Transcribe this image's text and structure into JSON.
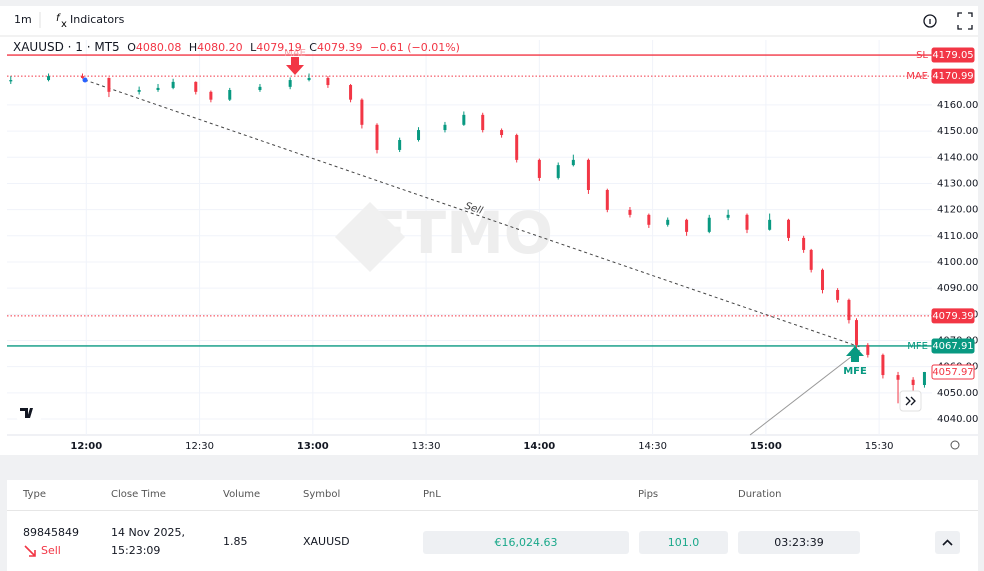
{
  "toolbar": {
    "interval": "1m",
    "indicators": "Indicators"
  },
  "legend": {
    "symbol": "XAUUSD · 1 · MT5",
    "ohlc": [
      {
        "key": "O",
        "value": "4080.08"
      },
      {
        "key": "H",
        "value": "4080.20"
      },
      {
        "key": "L",
        "value": "4079.19"
      },
      {
        "key": "C",
        "value": "4079.39"
      }
    ],
    "change": "−0.61 (−0.01%)"
  },
  "chart_data": {
    "type": "candlestick",
    "watermark": "FTMO",
    "candles": [
      [
        700,
        4169,
        4171,
        4168,
        4169.5
      ],
      [
        710,
        4169.5,
        4172,
        4169,
        4171
      ],
      [
        719,
        4171,
        4172,
        4170,
        4170.3
      ],
      [
        726,
        4170.3,
        4170.5,
        4163,
        4165
      ],
      [
        734,
        4165,
        4167,
        4164,
        4165.7
      ],
      [
        739,
        4165.7,
        4168,
        4165,
        4166.5
      ],
      [
        743,
        4166.5,
        4170,
        4166,
        4168.8
      ],
      [
        749,
        4168.8,
        4169,
        4164,
        4165
      ],
      [
        753,
        4165,
        4165.5,
        4161,
        4162
      ],
      [
        758,
        4162,
        4166.5,
        4161.5,
        4165.7
      ],
      [
        766,
        4165.7,
        4168,
        4165,
        4166.9
      ],
      [
        774,
        4166.9,
        4170.5,
        4166,
        4169.5
      ],
      [
        779,
        4169.5,
        4172,
        4169,
        4170.3
      ],
      [
        784,
        4170.3,
        4171,
        4166.5,
        4167.6
      ],
      [
        790,
        4167.6,
        4168,
        4161,
        4162
      ],
      [
        793,
        4162,
        4162.5,
        4151,
        4152.4
      ],
      [
        797,
        4152.4,
        4153,
        4141.5,
        4142.8
      ],
      [
        803,
        4142.8,
        4147.5,
        4142,
        4146.6
      ],
      [
        808,
        4146.6,
        4151.5,
        4146,
        4150.4
      ],
      [
        815,
        4150.4,
        4153.5,
        4149.5,
        4152.4
      ],
      [
        820,
        4152.4,
        4157.5,
        4152,
        4156.2
      ],
      [
        825,
        4156.2,
        4157,
        4149.5,
        4150.4
      ],
      [
        830,
        4150.4,
        4151,
        4147.5,
        4148.5
      ],
      [
        834,
        4148.5,
        4149,
        4138,
        4139
      ],
      [
        840,
        4139,
        4139.5,
        4131,
        4132.1
      ],
      [
        845,
        4132.1,
        4138,
        4131.5,
        4137
      ],
      [
        849,
        4137,
        4141,
        4136.5,
        4139
      ],
      [
        853,
        4139,
        4139.5,
        4126,
        4127.5
      ],
      [
        858,
        4127.5,
        4128,
        4119,
        4119.9
      ],
      [
        864,
        4119.9,
        4121,
        4117,
        4118
      ],
      [
        869,
        4118,
        4118.5,
        4113,
        4114.2
      ],
      [
        874,
        4114.2,
        4117,
        4113.5,
        4116.1
      ],
      [
        879,
        4116.1,
        4116.5,
        4110,
        4111.5
      ],
      [
        885,
        4111.5,
        4118,
        4111,
        4116.9
      ],
      [
        890,
        4116.9,
        4120,
        4116,
        4118
      ],
      [
        895,
        4118,
        4118.5,
        4111,
        4112.3
      ],
      [
        901,
        4112.3,
        4118.5,
        4112,
        4116.1
      ],
      [
        906,
        4116.1,
        4116.5,
        4108,
        4109.2
      ],
      [
        910,
        4109.2,
        4110,
        4103.5,
        4104.6
      ],
      [
        912,
        4104.6,
        4105,
        4096,
        4097
      ],
      [
        915,
        4097,
        4097.5,
        4088,
        4089.3
      ],
      [
        919,
        4089.3,
        4090,
        4084.5,
        4085.5
      ],
      [
        922,
        4085.5,
        4086,
        4076.5,
        4077.8
      ],
      [
        924,
        4077.8,
        4078.5,
        4067,
        4068.3
      ],
      [
        927,
        4068.3,
        4069,
        4063.5,
        4064.5
      ],
      [
        931,
        4064.5,
        4065,
        4055.5,
        4056.8
      ],
      [
        935,
        4056.8,
        4058,
        4046,
        4055
      ],
      [
        939,
        4055,
        4056,
        4050,
        4053
      ],
      [
        942,
        4053,
        4058,
        4052,
        4057.97
      ]
    ],
    "up_color": "#089981",
    "down_color": "#f23645",
    "xlim": [
      699,
      944
    ],
    "xticks": [
      {
        "value": 720,
        "label": "12:00"
      },
      {
        "value": 750,
        "label": "12:30"
      },
      {
        "value": 780,
        "label": "13:00"
      },
      {
        "value": 810,
        "label": "13:30"
      },
      {
        "value": 840,
        "label": "14:00"
      },
      {
        "value": 870,
        "label": "14:30"
      },
      {
        "value": 900,
        "label": "15:00"
      },
      {
        "value": 930,
        "label": "15:30"
      }
    ],
    "ylim": [
      4033.9,
      4184.8
    ],
    "yticks": [
      {
        "value": 4040,
        "label": "4040.00"
      },
      {
        "value": 4050,
        "label": "4050.00"
      },
      {
        "value": 4060,
        "label": "4060.00"
      },
      {
        "value": 4070,
        "label": "4070.00"
      },
      {
        "value": 4080,
        "label": "4080.00"
      },
      {
        "value": 4090,
        "label": "4090.00"
      },
      {
        "value": 4100,
        "label": "4100.00"
      },
      {
        "value": 4110,
        "label": "4110.00"
      },
      {
        "value": 4120,
        "label": "4120.00"
      },
      {
        "value": 4130,
        "label": "4130.00"
      },
      {
        "value": 4140,
        "label": "4140.00"
      },
      {
        "value": 4150,
        "label": "4150.00"
      },
      {
        "value": 4160,
        "label": "4160.00"
      }
    ],
    "grid": true,
    "levels": [
      {
        "name": "SL",
        "value": 4179.05,
        "color": "#f23645",
        "style": "solid"
      },
      {
        "name": "MAE",
        "value": 4170.99,
        "color": "#f23645",
        "style": "dotted"
      },
      {
        "value": 4079.39,
        "color": "#f23645",
        "style": "dotted"
      },
      {
        "name": "MFE",
        "value": 4067.91,
        "color": "#089981",
        "style": "solid"
      },
      {
        "value": 4057.97,
        "color": "#f23645",
        "style": "outline"
      }
    ],
    "annotations": {
      "mae": "MAE",
      "mfe": "MFE",
      "sell": "Sell"
    }
  },
  "table": {
    "headers": [
      "Type",
      "Close Time",
      "Volume",
      "Symbol",
      "PnL",
      "Pips",
      "Duration"
    ],
    "row": {
      "id": "89845849",
      "side": "Sell",
      "date": "14 Nov 2025,",
      "time": "15:23:09",
      "volume": "1.85",
      "symbol": "XAUUSD",
      "pnl": "€16,024.63",
      "pips": "101.0",
      "duration": "03:23:39"
    }
  }
}
